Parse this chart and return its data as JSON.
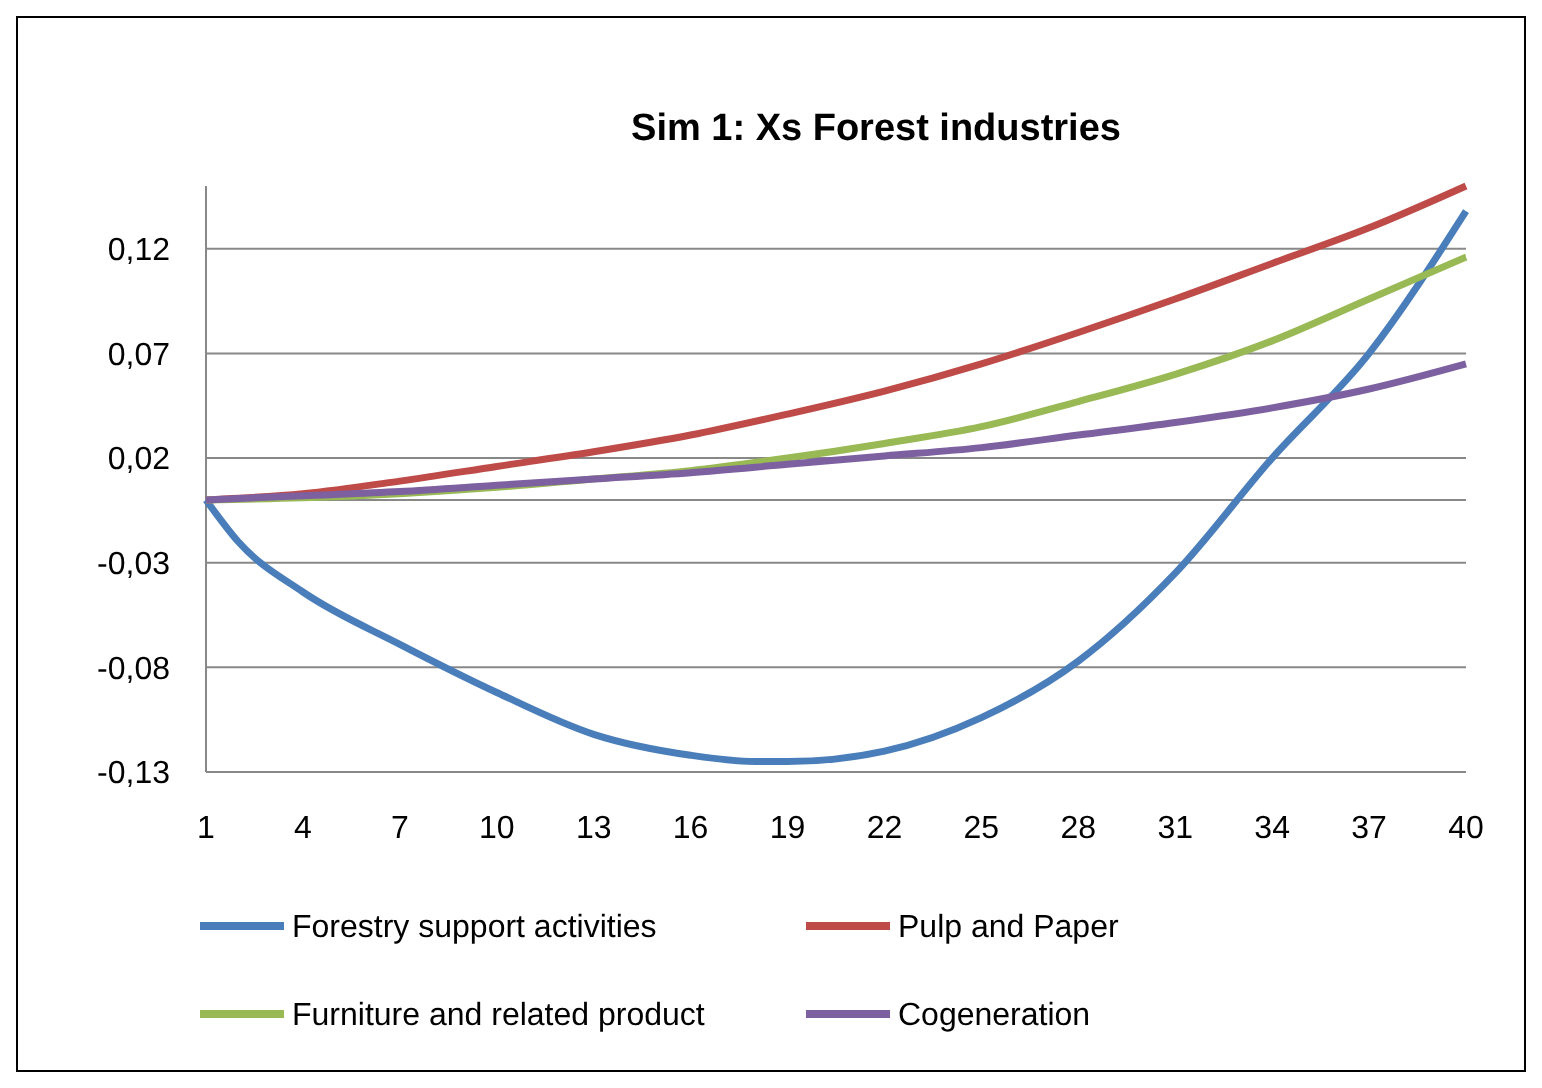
{
  "chart_data": {
    "type": "line",
    "title": "Sim 1: Xs Forest industries",
    "xlim": [
      1,
      40
    ],
    "xticks": [
      1,
      4,
      7,
      10,
      13,
      16,
      19,
      22,
      25,
      28,
      31,
      34,
      37,
      40
    ],
    "ylim": [
      -0.13,
      0.15
    ],
    "yticks": [
      {
        "value": -0.13,
        "label": "-0,13"
      },
      {
        "value": -0.08,
        "label": "-0,08"
      },
      {
        "value": -0.03,
        "label": "-0,03"
      },
      {
        "value": 0.02,
        "label": "0,02"
      },
      {
        "value": 0.07,
        "label": "0,07"
      },
      {
        "value": 0.12,
        "label": "0,12"
      }
    ],
    "grid": "y",
    "legend": "bottom",
    "marker": "none",
    "line_style": "solid",
    "series": [
      {
        "name": "Forestry support activities",
        "color": "#4a7ebb",
        "x": [
          1,
          2,
          4,
          7,
          10,
          13,
          16,
          18,
          19,
          22,
          25,
          28,
          31,
          34,
          37,
          40
        ],
        "values": [
          0,
          -0.02,
          -0.044,
          -0.069,
          -0.092,
          -0.112,
          -0.122,
          -0.125,
          -0.125,
          -0.12,
          -0.104,
          -0.077,
          -0.035,
          0.02,
          0.07,
          0.138
        ]
      },
      {
        "name": "Pulp and Paper",
        "color": "#be4b48",
        "x": [
          1,
          4,
          7,
          10,
          13,
          16,
          19,
          22,
          25,
          28,
          31,
          34,
          37,
          40
        ],
        "values": [
          0,
          0.003,
          0.009,
          0.016,
          0.023,
          0.031,
          0.041,
          0.052,
          0.065,
          0.08,
          0.096,
          0.113,
          0.13,
          0.15
        ]
      },
      {
        "name": "Furniture and related product",
        "color": "#98b954",
        "x": [
          1,
          4,
          7,
          10,
          13,
          16,
          19,
          22,
          25,
          28,
          31,
          34,
          37,
          40
        ],
        "values": [
          0,
          0.001,
          0.003,
          0.006,
          0.01,
          0.014,
          0.02,
          0.027,
          0.035,
          0.047,
          0.06,
          0.076,
          0.096,
          0.116
        ]
      },
      {
        "name": "Cogeneration",
        "color": "#7d60a0",
        "x": [
          1,
          4,
          7,
          10,
          13,
          16,
          19,
          22,
          25,
          28,
          31,
          34,
          37,
          40
        ],
        "values": [
          0,
          0.002,
          0.004,
          0.007,
          0.01,
          0.013,
          0.017,
          0.021,
          0.025,
          0.031,
          0.037,
          0.044,
          0.053,
          0.065
        ]
      }
    ]
  }
}
